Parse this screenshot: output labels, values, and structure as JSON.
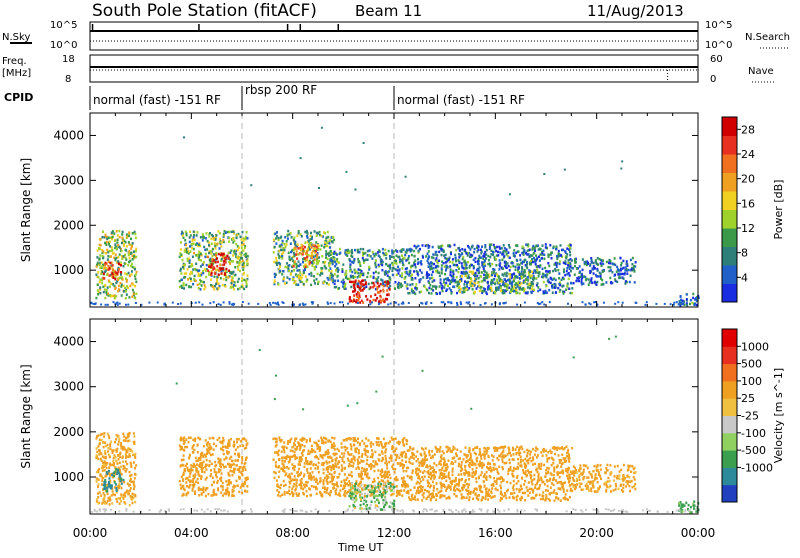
{
  "header": {
    "station": "South Pole Station (fitACF)",
    "beam": "Beam 11",
    "date": "11/Aug/2013"
  },
  "strip": {
    "nsky_label": "N.Sky",
    "nsky_ticks": [
      "10^5",
      "10^0"
    ],
    "nsearch_label": "N.Search",
    "nsearch_ticks": [
      "10^5",
      "10^0"
    ],
    "freq_label_1": "Freq.",
    "freq_label_2": "[MHz]",
    "freq_ticks": [
      "18",
      "8"
    ],
    "nave_label": "Nave",
    "nave_ticks": [
      "60",
      "0"
    ],
    "cpid_label": "CPID"
  },
  "cpid_segments": [
    {
      "label": "normal (fast) -151 RF",
      "start": 0,
      "end": 6
    },
    {
      "label": "rbsp 200 RF",
      "start": 6,
      "end": 12
    },
    {
      "label": "normal (fast) -151 RF",
      "start": 12,
      "end": 24
    }
  ],
  "chart_data": [
    {
      "type": "heatmap",
      "panel": "power",
      "title": "South Pole Station (fitACF) Beam 11 11/Aug/2013",
      "xlabel": "Time UT",
      "ylabel": "Slant Range [km]",
      "x_ticks": [
        "00:00",
        "04:00",
        "08:00",
        "12:00",
        "16:00",
        "20:00",
        "00:00"
      ],
      "xlim_hours": [
        0,
        24
      ],
      "ylim_km": [
        180,
        4500
      ],
      "y_ticks": [
        1000,
        2000,
        3000,
        4000
      ],
      "colorbar": {
        "label": "Power [dB]",
        "ticks": [
          4,
          8,
          12,
          16,
          20,
          24,
          28
        ],
        "range": [
          0,
          30
        ],
        "colors": [
          "#1a2de0",
          "#2060c8",
          "#2e7f7a",
          "#3a9a4a",
          "#9fd22a",
          "#f0d020",
          "#f0a020",
          "#f07020",
          "#e83020",
          "#d00000"
        ]
      },
      "clusters": [
        {
          "t0": 0.2,
          "t1": 1.8,
          "r0": 400,
          "r1": 1900,
          "value": 14
        },
        {
          "t0": 0.5,
          "t1": 1.2,
          "r0": 800,
          "r1": 1200,
          "value": 26
        },
        {
          "t0": 3.5,
          "t1": 6.2,
          "r0": 600,
          "r1": 1900,
          "value": 12
        },
        {
          "t0": 4.6,
          "t1": 5.5,
          "r0": 900,
          "r1": 1400,
          "value": 27
        },
        {
          "t0": 7.2,
          "t1": 9.6,
          "r0": 700,
          "r1": 1900,
          "value": 10
        },
        {
          "t0": 8.0,
          "t1": 9.0,
          "r0": 1100,
          "r1": 1600,
          "value": 20
        },
        {
          "t0": 9.6,
          "t1": 12.5,
          "r0": 600,
          "r1": 1500,
          "value": 8
        },
        {
          "t0": 10.2,
          "t1": 11.8,
          "r0": 300,
          "r1": 800,
          "value": 28
        },
        {
          "t0": 12.5,
          "t1": 19.0,
          "r0": 500,
          "r1": 1600,
          "value": 6
        },
        {
          "t0": 14.5,
          "t1": 17.5,
          "r0": 500,
          "r1": 1000,
          "value": 11
        },
        {
          "t0": 19.0,
          "t1": 21.5,
          "r0": 700,
          "r1": 1300,
          "value": 5
        },
        {
          "t0": 23.2,
          "t1": 24.0,
          "r0": 200,
          "r1": 500,
          "value": 7
        }
      ]
    },
    {
      "type": "heatmap",
      "panel": "velocity",
      "xlabel": "Time UT",
      "ylabel": "Slant Range [km]",
      "x_ticks": [
        "00:00",
        "04:00",
        "08:00",
        "12:00",
        "16:00",
        "20:00",
        "00:00"
      ],
      "xlim_hours": [
        0,
        24
      ],
      "ylim_km": [
        180,
        4500
      ],
      "y_ticks": [
        1000,
        2000,
        3000,
        4000
      ],
      "colorbar": {
        "label": "Velocity [m s^-1]",
        "ticks": [
          "1000",
          "500",
          "100",
          "25",
          "-25",
          "-100",
          "-500",
          "-1000"
        ],
        "colors": [
          "#2040c0",
          "#2c8a9a",
          "#3aa050",
          "#8fd060",
          "#c8c8c8",
          "#f0c040",
          "#f0a020",
          "#f07020",
          "#e83020",
          "#e00000"
        ]
      },
      "clusters": [
        {
          "t0": 0.2,
          "t1": 1.8,
          "r0": 400,
          "r1": 2000,
          "value": -200
        },
        {
          "t0": 0.5,
          "t1": 1.3,
          "r0": 700,
          "r1": 1200,
          "value": 600
        },
        {
          "t0": 3.5,
          "t1": 6.2,
          "r0": 600,
          "r1": 1900,
          "value": -300
        },
        {
          "t0": 7.2,
          "t1": 12.5,
          "r0": 600,
          "r1": 1900,
          "value": -250
        },
        {
          "t0": 10.2,
          "t1": 12.0,
          "r0": 300,
          "r1": 900,
          "value": 100
        },
        {
          "t0": 12.5,
          "t1": 19.0,
          "r0": 500,
          "r1": 1700,
          "value": -300
        },
        {
          "t0": 19.0,
          "t1": 21.5,
          "r0": 700,
          "r1": 1300,
          "value": -200
        },
        {
          "t0": 23.2,
          "t1": 24.0,
          "r0": 200,
          "r1": 500,
          "value": 200
        }
      ]
    }
  ]
}
